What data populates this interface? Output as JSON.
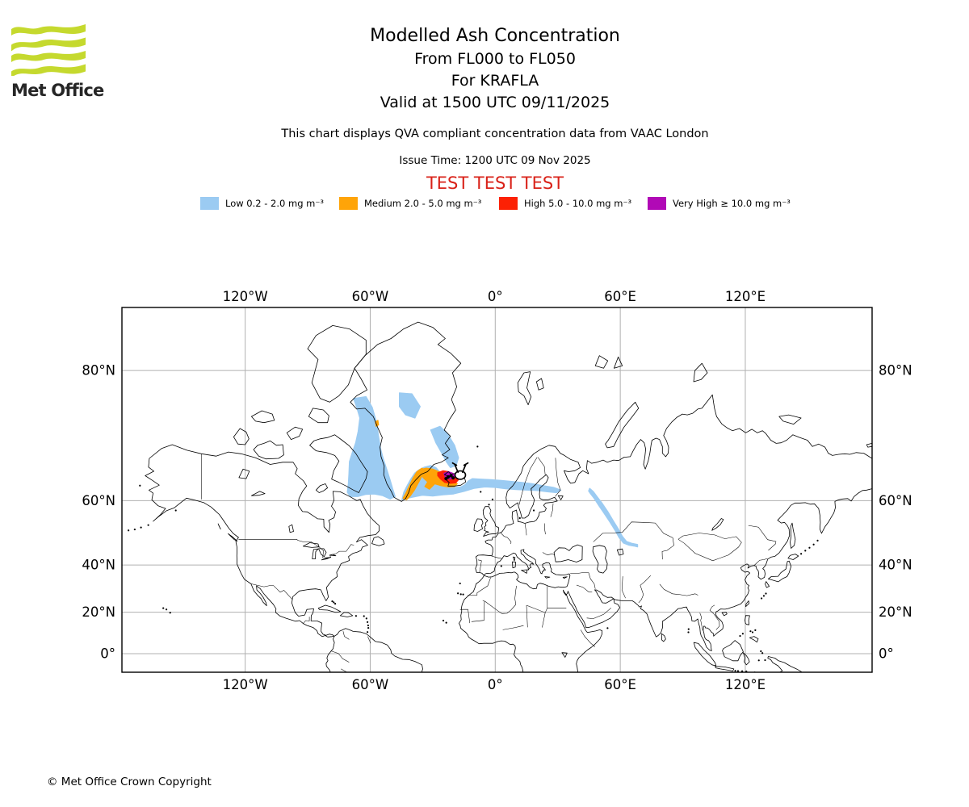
{
  "header": {
    "logo_text": "Met Office",
    "logo_green": "#c5d92e",
    "title": "Modelled Ash Concentration",
    "subtitle1": "From FL000 to FL050",
    "subtitle2": "For KRAFLA",
    "subtitle3": "Valid at 1500 UTC 09/11/2025"
  },
  "notes": {
    "qva": "This chart displays QVA compliant concentration data from VAAC London",
    "issue_time": "Issue Time: 1200 UTC 09 Nov 2025",
    "test_banner": "TEST TEST TEST",
    "test_color": "#d92118"
  },
  "legend": {
    "items": [
      {
        "level": "Low",
        "label": "Low 0.2 - 2.0 mg m⁻³",
        "color": "#9bcbf2"
      },
      {
        "level": "Medium",
        "label": "Medium 2.0 - 5.0 mg m⁻³",
        "color": "#ffa408"
      },
      {
        "level": "High",
        "label": "High 5.0 - 10.0 mg m⁻³",
        "color": "#fc2104"
      },
      {
        "level": "Very High",
        "label": "Very High ≥ 10.0 mg m⁻³",
        "color": "#b109b6"
      }
    ]
  },
  "chart_data": {
    "type": "map",
    "projection": "mercator",
    "grid": {
      "color": "#b0b0b0",
      "lon_lines": [
        -120,
        -60,
        0,
        60,
        120
      ],
      "lat_lines": [
        80,
        60,
        40,
        20,
        0
      ]
    },
    "lon_ticks": [
      {
        "label": "120°W",
        "lon": -120
      },
      {
        "label": "60°W",
        "lon": -60
      },
      {
        "label": "0°",
        "lon": 0
      },
      {
        "label": "60°E",
        "lon": 60
      },
      {
        "label": "120°E",
        "lon": 120
      }
    ],
    "lat_ticks": [
      {
        "label": "80°N",
        "lat": 80
      },
      {
        "label": "60°N",
        "lat": 60
      },
      {
        "label": "40°N",
        "lat": 40
      },
      {
        "label": "20°N",
        "lat": 20
      },
      {
        "label": "0°",
        "lat": 0
      }
    ],
    "volcano": {
      "name": "KRAFLA",
      "lon": -16.78,
      "lat": 65.73
    },
    "series": [
      {
        "level": "Low",
        "color": "#9bcbf2",
        "polygons": [
          [
            -68,
            77.3,
            -62,
            77.5,
            -59,
            76.3,
            -57,
            74.5,
            -56,
            72.5,
            -55,
            70.5,
            -53.5,
            68.6,
            -52,
            66.8,
            -50.5,
            64.8,
            -49.2,
            62.8,
            -48,
            61,
            -50.5,
            60.4,
            -54,
            61.2,
            -58,
            61.6,
            -62,
            61.5,
            -66,
            61,
            -69.5,
            61,
            -71,
            62,
            -70.5,
            64,
            -70.2,
            66,
            -70,
            68.3,
            -68.5,
            70,
            -67,
            71.5,
            -65.8,
            73.2,
            -65,
            75,
            -66.5,
            76.3,
            -68,
            77.3
          ],
          [
            -46,
            77.9,
            -40,
            77.8,
            -36,
            76.4,
            -38.5,
            75,
            -43,
            75.4,
            -46,
            76.4,
            -46,
            77.9
          ],
          [
            -31,
            73.4,
            -26.5,
            73.9,
            -23,
            72.9,
            -19.5,
            71.1,
            -17.6,
            69,
            -18.8,
            67.6,
            -21.5,
            67.2,
            -23.5,
            68.3,
            -25.8,
            69.9,
            -28.5,
            71.5,
            -31,
            73.4
          ],
          [
            -44.8,
            60.2,
            -40,
            60.8,
            -35,
            61.3,
            -30,
            61.1,
            -25,
            61.4,
            -20,
            61.6,
            -15,
            62.2,
            -10,
            62.9,
            -5,
            63.2,
            0,
            63.1,
            5,
            62.8,
            10,
            62.6,
            15,
            62.5,
            20,
            62.4,
            25,
            62.1,
            29.5,
            61.9,
            31.5,
            62.5,
            28,
            63.1,
            23,
            63.5,
            18,
            63.9,
            13,
            64.2,
            8,
            64.4,
            3,
            64.6,
            -2,
            64.8,
            -7,
            64.9,
            -11,
            65,
            -13,
            64.5,
            -14.5,
            63.7,
            -16.5,
            63.2,
            -19,
            63.1,
            -21.5,
            63.1,
            -23,
            63.4,
            -24.3,
            64.2,
            -25.5,
            65.2,
            -26.5,
            66.3,
            -28.5,
            67.2,
            -31,
            67.6,
            -34,
            67.3,
            -36.5,
            66.8,
            -38.7,
            66.1,
            -40.7,
            64.8,
            -42.4,
            63.4,
            -43.9,
            62,
            -44.8,
            60.2
          ],
          [
            45.5,
            61.8,
            47.5,
            60.5,
            50,
            58.5,
            52.5,
            56.5,
            55,
            54.3,
            57.5,
            51.8,
            59.5,
            49.5,
            61.5,
            47.8,
            64,
            47.1,
            66.5,
            46.8,
            68.3,
            46.5,
            68.3,
            47.3,
            65.5,
            47.7,
            63,
            48.3,
            61,
            50,
            59,
            52.3,
            56.5,
            54.8,
            54,
            57.2,
            51.5,
            59.2,
            49,
            60.9,
            47,
            62.2,
            45.3,
            62.9,
            44.8,
            62.3,
            45.5,
            61.8
          ]
        ]
      },
      {
        "level": "Medium",
        "color": "#ffa408",
        "polygons": [
          [
            -44.2,
            60.6,
            -42.8,
            61.9,
            -41.3,
            63.4,
            -39.6,
            65,
            -37.6,
            66.4,
            -35.2,
            67.1,
            -33.8,
            66.8,
            -35.2,
            65.5,
            -37,
            64,
            -38.8,
            62.5,
            -40.8,
            61.1,
            -42.6,
            60.2,
            -44.2,
            60.6
          ],
          [
            -36.2,
            66.8,
            -33,
            67.1,
            -30,
            66.9,
            -27,
            66.4,
            -24.5,
            65.7,
            -22,
            65,
            -19.8,
            64.4,
            -18.2,
            63.9,
            -19.6,
            63.3,
            -22.6,
            63.2,
            -26,
            63.5,
            -29,
            63.9,
            -31.6,
            62.7,
            -33.8,
            63.3,
            -32.4,
            64.3,
            -34.6,
            65.2,
            -36.2,
            66.8
          ],
          [
            -57.5,
            74.5,
            -56.3,
            74.7,
            -56,
            74.1,
            -57.2,
            73.9,
            -57.5,
            74.5
          ]
        ]
      },
      {
        "level": "High",
        "color": "#fc2104",
        "polygons": [
          [
            -27.6,
            66.2,
            -25,
            66.6,
            -22.4,
            66.4,
            -20.4,
            65.9,
            -18.6,
            65.3,
            -17.8,
            64.7,
            -19,
            64.1,
            -21.6,
            64,
            -24.2,
            64.2,
            -26.2,
            64.9,
            -27.6,
            65.6,
            -27.6,
            66.2
          ]
        ]
      },
      {
        "level": "Very High",
        "color": "#b109b6",
        "polygons": [
          [
            -24.6,
            66.1,
            -22.4,
            66.4,
            -20.4,
            66.1,
            -19.2,
            65.6,
            -20,
            65,
            -22.2,
            64.9,
            -24,
            65.3,
            -24.6,
            66.1
          ]
        ]
      },
      {
        "level": "spots",
        "color": "#000000",
        "points": [
          [
            -22.6,
            65.35
          ],
          [
            -21.2,
            65.6
          ],
          [
            -20.2,
            65.15
          ],
          [
            -23.6,
            65.0
          ]
        ]
      }
    ]
  },
  "footer": {
    "copyright": "© Met Office Crown Copyright"
  }
}
